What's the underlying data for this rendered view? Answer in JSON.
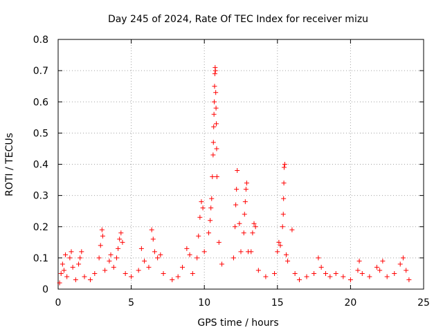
{
  "chart_data": {
    "type": "scatter",
    "title": "Day 245 of 2024, Rate Of TEC Index for receiver mizu",
    "xlabel": "GPS time / hours",
    "ylabel": "ROTI / TECUs",
    "xlim": [
      0,
      25
    ],
    "ylim": [
      0,
      0.8
    ],
    "xticks": [
      0,
      5,
      10,
      15,
      20,
      25
    ],
    "yticks": [
      0,
      0.1,
      0.2,
      0.3,
      0.4,
      0.5,
      0.6,
      0.7,
      0.8
    ],
    "xtick_labels": [
      "0",
      "5",
      "10",
      "15",
      "20",
      "25"
    ],
    "ytick_labels": [
      "0",
      "0.1",
      "0.2",
      "0.3",
      "0.4",
      "0.5",
      "0.6",
      "0.7",
      "0.8"
    ],
    "grid": true,
    "marker": "+",
    "color": "#ff0000",
    "series": [
      {
        "name": "ROTI",
        "points": [
          [
            0.1,
            0.02
          ],
          [
            0.2,
            0.05
          ],
          [
            0.3,
            0.08
          ],
          [
            0.4,
            0.06
          ],
          [
            0.5,
            0.11
          ],
          [
            0.6,
            0.04
          ],
          [
            0.8,
            0.1
          ],
          [
            0.9,
            0.12
          ],
          [
            1.0,
            0.07
          ],
          [
            1.2,
            0.03
          ],
          [
            1.4,
            0.08
          ],
          [
            1.5,
            0.1
          ],
          [
            1.6,
            0.12
          ],
          [
            1.8,
            0.04
          ],
          [
            2.2,
            0.03
          ],
          [
            2.5,
            0.05
          ],
          [
            2.8,
            0.1
          ],
          [
            2.9,
            0.14
          ],
          [
            3.0,
            0.19
          ],
          [
            3.05,
            0.17
          ],
          [
            3.2,
            0.06
          ],
          [
            3.5,
            0.09
          ],
          [
            3.6,
            0.11
          ],
          [
            3.8,
            0.07
          ],
          [
            4.0,
            0.1
          ],
          [
            4.1,
            0.13
          ],
          [
            4.2,
            0.16
          ],
          [
            4.3,
            0.18
          ],
          [
            4.4,
            0.15
          ],
          [
            4.6,
            0.05
          ],
          [
            5.0,
            0.04
          ],
          [
            5.5,
            0.06
          ],
          [
            5.7,
            0.13
          ],
          [
            5.9,
            0.09
          ],
          [
            6.2,
            0.07
          ],
          [
            6.4,
            0.19
          ],
          [
            6.5,
            0.16
          ],
          [
            6.6,
            0.12
          ],
          [
            6.8,
            0.1
          ],
          [
            7.0,
            0.11
          ],
          [
            7.2,
            0.05
          ],
          [
            7.8,
            0.03
          ],
          [
            8.2,
            0.04
          ],
          [
            8.5,
            0.07
          ],
          [
            8.8,
            0.13
          ],
          [
            9.0,
            0.11
          ],
          [
            9.2,
            0.05
          ],
          [
            9.5,
            0.1
          ],
          [
            9.6,
            0.17
          ],
          [
            9.7,
            0.23
          ],
          [
            9.8,
            0.28
          ],
          [
            9.9,
            0.26
          ],
          [
            10.0,
            0.12
          ],
          [
            10.3,
            0.18
          ],
          [
            10.4,
            0.22
          ],
          [
            10.45,
            0.26
          ],
          [
            10.5,
            0.29
          ],
          [
            10.55,
            0.36
          ],
          [
            10.6,
            0.43
          ],
          [
            10.62,
            0.47
          ],
          [
            10.64,
            0.52
          ],
          [
            10.66,
            0.56
          ],
          [
            10.68,
            0.6
          ],
          [
            10.7,
            0.65
          ],
          [
            10.72,
            0.69
          ],
          [
            10.74,
            0.71
          ],
          [
            10.76,
            0.7
          ],
          [
            10.78,
            0.63
          ],
          [
            10.8,
            0.58
          ],
          [
            10.82,
            0.53
          ],
          [
            10.84,
            0.45
          ],
          [
            10.86,
            0.36
          ],
          [
            11.0,
            0.15
          ],
          [
            11.2,
            0.08
          ],
          [
            12.0,
            0.1
          ],
          [
            12.1,
            0.2
          ],
          [
            12.15,
            0.27
          ],
          [
            12.2,
            0.32
          ],
          [
            12.25,
            0.38
          ],
          [
            12.4,
            0.21
          ],
          [
            12.5,
            0.12
          ],
          [
            12.7,
            0.18
          ],
          [
            12.75,
            0.24
          ],
          [
            12.8,
            0.28
          ],
          [
            12.85,
            0.32
          ],
          [
            12.9,
            0.34
          ],
          [
            13.0,
            0.12
          ],
          [
            13.2,
            0.12
          ],
          [
            13.3,
            0.18
          ],
          [
            13.4,
            0.21
          ],
          [
            13.5,
            0.2
          ],
          [
            13.7,
            0.06
          ],
          [
            14.2,
            0.04
          ],
          [
            14.8,
            0.05
          ],
          [
            15.0,
            0.12
          ],
          [
            15.1,
            0.15
          ],
          [
            15.2,
            0.14
          ],
          [
            15.35,
            0.2
          ],
          [
            15.4,
            0.24
          ],
          [
            15.42,
            0.29
          ],
          [
            15.44,
            0.34
          ],
          [
            15.46,
            0.39
          ],
          [
            15.5,
            0.4
          ],
          [
            15.6,
            0.11
          ],
          [
            15.7,
            0.09
          ],
          [
            16.0,
            0.19
          ],
          [
            16.2,
            0.05
          ],
          [
            16.5,
            0.03
          ],
          [
            17.0,
            0.04
          ],
          [
            17.5,
            0.05
          ],
          [
            17.8,
            0.1
          ],
          [
            18.0,
            0.07
          ],
          [
            18.3,
            0.05
          ],
          [
            18.6,
            0.04
          ],
          [
            19.0,
            0.05
          ],
          [
            19.5,
            0.04
          ],
          [
            20.0,
            0.03
          ],
          [
            20.5,
            0.06
          ],
          [
            20.6,
            0.09
          ],
          [
            20.8,
            0.05
          ],
          [
            21.3,
            0.04
          ],
          [
            21.8,
            0.07
          ],
          [
            22.0,
            0.06
          ],
          [
            22.2,
            0.09
          ],
          [
            22.5,
            0.04
          ],
          [
            23.0,
            0.05
          ],
          [
            23.4,
            0.08
          ],
          [
            23.6,
            0.1
          ],
          [
            23.8,
            0.06
          ],
          [
            24.0,
            0.03
          ]
        ]
      }
    ]
  }
}
